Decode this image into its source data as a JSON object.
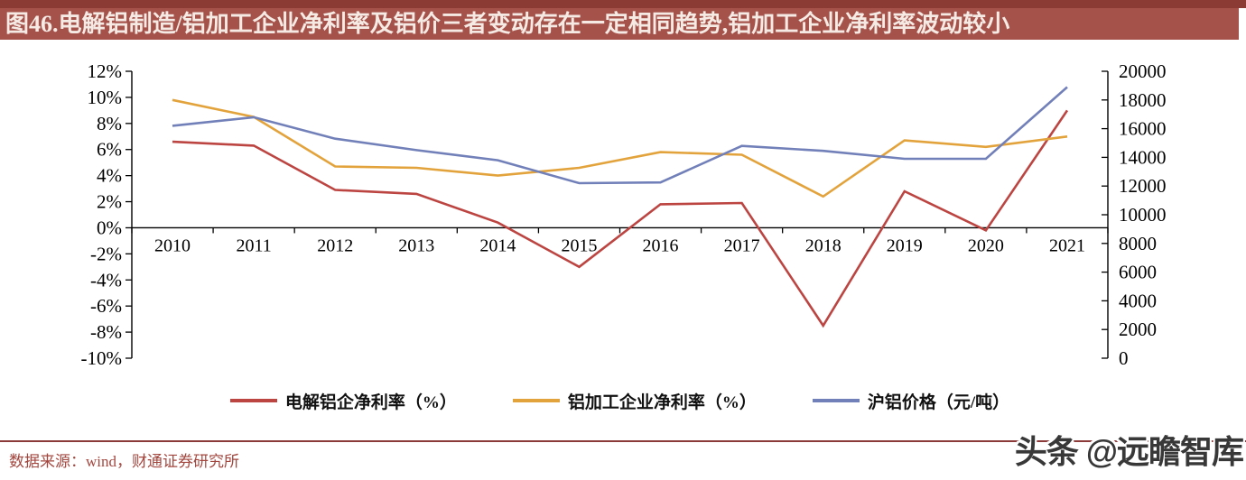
{
  "header": {
    "title": "图46.电解铝制造/铝加工企业净利率及铝价三者变动存在一定相同趋势,铝加工企业净利率波动较小"
  },
  "chart_data": {
    "type": "line",
    "title": "",
    "categories": [
      "2010",
      "2011",
      "2012",
      "2013",
      "2014",
      "2015",
      "2016",
      "2017",
      "2018",
      "2019",
      "2020",
      "2021"
    ],
    "series": [
      {
        "name": "电解铝企净利率（%）",
        "axis": "left",
        "color": "#BC4542",
        "values": [
          6.6,
          6.3,
          2.9,
          2.6,
          0.4,
          -3.0,
          1.8,
          1.9,
          -7.5,
          2.8,
          -0.2,
          9.0
        ]
      },
      {
        "name": "铝加工企业净利率（%）",
        "axis": "left",
        "color": "#E3A33C",
        "values": [
          9.8,
          8.5,
          4.7,
          4.6,
          4.0,
          4.6,
          5.8,
          5.6,
          2.4,
          6.7,
          6.2,
          7.0
        ]
      },
      {
        "name": "沪铝价格（元/吨）",
        "axis": "right",
        "color": "#7280B9",
        "values": [
          16200,
          16800,
          15300,
          14500,
          13800,
          12200,
          12250,
          14800,
          14450,
          13900,
          13900,
          18900
        ]
      }
    ],
    "left_axis": {
      "min": -10,
      "max": 12,
      "ticks": [
        "12%",
        "10%",
        "8%",
        "6%",
        "4%",
        "2%",
        "0%",
        "-2%",
        "-4%",
        "-6%",
        "-8%",
        "-10%"
      ],
      "tick_values": [
        12,
        10,
        8,
        6,
        4,
        2,
        0,
        -2,
        -4,
        -6,
        -8,
        -10
      ]
    },
    "right_axis": {
      "min": 0,
      "max": 20000,
      "ticks": [
        "20000",
        "18000",
        "16000",
        "14000",
        "12000",
        "10000",
        "8000",
        "6000",
        "4000",
        "2000",
        "0"
      ],
      "tick_values": [
        20000,
        18000,
        16000,
        14000,
        12000,
        10000,
        8000,
        6000,
        4000,
        2000,
        0
      ]
    },
    "grid": false,
    "legend_position": "bottom",
    "axis_color": "#000000"
  },
  "footer": {
    "source": "数据来源：wind，财通证券研究所",
    "watermark": "头条 @远瞻智库"
  },
  "colors": {
    "title_bar": "#A5524B",
    "title_bar_top_strip": "#8B3B33",
    "title_text": "#F5EBE4",
    "source_text": "#A3473F",
    "divider_line": "#8C3939",
    "watermark_text": "#383838"
  }
}
